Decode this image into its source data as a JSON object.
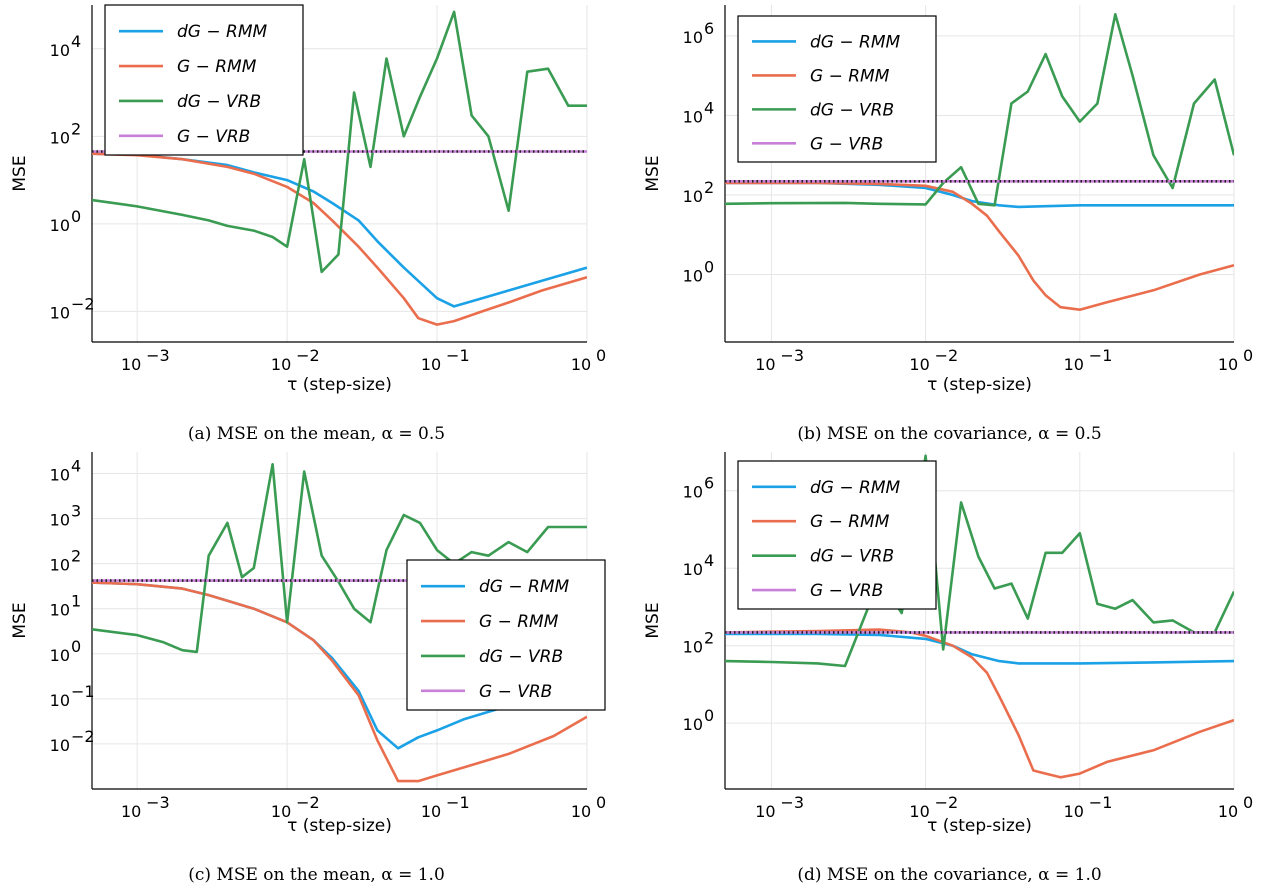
{
  "colors": {
    "dG-RMM": "#1ba1e6",
    "G-RMM": "#ea6e4d",
    "dG-VRB": "#3a9b52",
    "G-VRB": "#c77fd8",
    "grid": "#e6e6e6",
    "axis": "#000000"
  },
  "chart_data": [
    {
      "type": "line",
      "caption": "(a) MSE on the mean, α = 0.5",
      "xlabel": "τ (step-size)",
      "ylabel": "MSE",
      "xscale": "log",
      "yscale": "log",
      "xlim": [
        0.0005,
        1.0
      ],
      "ylim": [
        0.002,
        100000
      ],
      "xticks": [
        0.001,
        0.01,
        0.1,
        1
      ],
      "xtick_labels": [
        [
          "10",
          "−3"
        ],
        [
          "10",
          "−2"
        ],
        [
          "10",
          "−1"
        ],
        [
          "10",
          "0"
        ]
      ],
      "yticks": [
        0.01,
        1,
        100,
        10000
      ],
      "ytick_labels": [
        [
          "10",
          "−2"
        ],
        [
          "10",
          "0"
        ],
        [
          "10",
          "2"
        ],
        [
          "10",
          "4"
        ]
      ],
      "legend_position": "top-left",
      "grid": true,
      "series": [
        {
          "name": "dG − RMM",
          "key": "dG-RMM",
          "x": [
            0.0005,
            0.001,
            0.002,
            0.004,
            0.006,
            0.01,
            0.015,
            0.02,
            0.03,
            0.04,
            0.06,
            0.1,
            0.13,
            0.2,
            0.3,
            0.5,
            1.0
          ],
          "y": [
            40,
            38,
            30,
            22,
            15,
            10,
            5.5,
            3,
            1.2,
            0.4,
            0.1,
            0.02,
            0.013,
            0.02,
            0.03,
            0.05,
            0.1
          ]
        },
        {
          "name": "G − RMM",
          "key": "G-RMM",
          "x": [
            0.0005,
            0.001,
            0.002,
            0.004,
            0.006,
            0.01,
            0.015,
            0.02,
            0.03,
            0.04,
            0.06,
            0.075,
            0.1,
            0.13,
            0.2,
            0.3,
            0.5,
            1.0
          ],
          "y": [
            40,
            37,
            30,
            20,
            14,
            7,
            3,
            1.2,
            0.3,
            0.1,
            0.02,
            0.007,
            0.005,
            0.006,
            0.01,
            0.016,
            0.03,
            0.06
          ]
        },
        {
          "name": "dG − VRB",
          "key": "dG-VRB",
          "x": [
            0.0005,
            0.001,
            0.002,
            0.003,
            0.004,
            0.006,
            0.008,
            0.01,
            0.013,
            0.017,
            0.022,
            0.028,
            0.036,
            0.046,
            0.06,
            0.077,
            0.1,
            0.13,
            0.17,
            0.22,
            0.3,
            0.4,
            0.55,
            0.75,
            1.0
          ],
          "y": [
            3.5,
            2.5,
            1.6,
            1.2,
            0.9,
            0.7,
            0.5,
            0.3,
            30,
            0.08,
            0.2,
            1000,
            20,
            6000,
            100,
            800,
            6000,
            70000,
            300,
            100,
            2,
            3000,
            3500,
            500,
            500
          ]
        },
        {
          "name": "G − VRB",
          "key": "G-VRB",
          "x": [
            0.0005,
            1.0
          ],
          "y": [
            45,
            45
          ]
        }
      ]
    },
    {
      "type": "line",
      "caption": "(b) MSE on the covariance, α = 0.5",
      "xlabel": "τ (step-size)",
      "ylabel": "MSE",
      "xscale": "log",
      "yscale": "log",
      "xlim": [
        0.0005,
        1.0
      ],
      "ylim": [
        0.02,
        6000000
      ],
      "xticks": [
        0.001,
        0.01,
        0.1,
        1
      ],
      "xtick_labels": [
        [
          "10",
          "−3"
        ],
        [
          "10",
          "−2"
        ],
        [
          "10",
          "−1"
        ],
        [
          "10",
          "0"
        ]
      ],
      "yticks": [
        1,
        100,
        10000,
        1000000
      ],
      "ytick_labels": [
        [
          "10",
          "0"
        ],
        [
          "10",
          "2"
        ],
        [
          "10",
          "4"
        ],
        [
          "10",
          "6"
        ]
      ],
      "legend_position": "top-left",
      "grid": true,
      "series": [
        {
          "name": "dG − RMM",
          "key": "dG-RMM",
          "x": [
            0.0005,
            0.002,
            0.005,
            0.01,
            0.015,
            0.02,
            0.03,
            0.04,
            0.06,
            0.1,
            0.3,
            1.0
          ],
          "y": [
            200,
            200,
            180,
            150,
            100,
            70,
            55,
            50,
            52,
            55,
            55,
            55
          ]
        },
        {
          "name": "G − RMM",
          "key": "G-RMM",
          "x": [
            0.0005,
            0.002,
            0.005,
            0.01,
            0.015,
            0.02,
            0.025,
            0.03,
            0.04,
            0.05,
            0.06,
            0.075,
            0.1,
            0.15,
            0.3,
            0.6,
            1.0
          ],
          "y": [
            200,
            200,
            190,
            170,
            120,
            60,
            30,
            12,
            3,
            0.7,
            0.3,
            0.15,
            0.13,
            0.2,
            0.4,
            1,
            1.7
          ]
        },
        {
          "name": "dG − VRB",
          "key": "dG-VRB",
          "x": [
            0.0005,
            0.001,
            0.003,
            0.005,
            0.01,
            0.013,
            0.017,
            0.022,
            0.028,
            0.036,
            0.046,
            0.06,
            0.077,
            0.1,
            0.13,
            0.17,
            0.22,
            0.3,
            0.4,
            0.55,
            0.75,
            1.0
          ],
          "y": [
            60,
            62,
            63,
            60,
            58,
            200,
            500,
            60,
            55,
            20000,
            40000,
            350000,
            30000,
            7000,
            20000,
            3500000,
            100000,
            1000,
            150,
            20000,
            80000,
            1000
          ]
        },
        {
          "name": "G − VRB",
          "key": "G-VRB",
          "x": [
            0.0005,
            1.0
          ],
          "y": [
            220,
            220
          ]
        }
      ]
    },
    {
      "type": "line",
      "caption": "(c) MSE on the mean, α = 1.0",
      "xlabel": "τ (step-size)",
      "ylabel": "MSE",
      "xscale": "log",
      "yscale": "log",
      "xlim": [
        0.0005,
        1.0
      ],
      "ylim": [
        0.001,
        30000
      ],
      "xticks": [
        0.001,
        0.01,
        0.1,
        1
      ],
      "xtick_labels": [
        [
          "10",
          "−3"
        ],
        [
          "10",
          "−2"
        ],
        [
          "10",
          "−1"
        ],
        [
          "10",
          "0"
        ]
      ],
      "yticks": [
        0.01,
        0.1,
        1,
        10,
        100,
        1000,
        10000
      ],
      "ytick_labels": [
        [
          "10",
          "−2"
        ],
        [
          "10",
          "−1"
        ],
        [
          "10",
          "0"
        ],
        [
          "10",
          "1"
        ],
        [
          "10",
          "2"
        ],
        [
          "10",
          "3"
        ],
        [
          "10",
          "4"
        ]
      ],
      "legend_position": "center-right",
      "grid": true,
      "series": [
        {
          "name": "dG − RMM",
          "key": "dG-RMM",
          "x": [
            0.0005,
            0.001,
            0.002,
            0.003,
            0.004,
            0.006,
            0.01,
            0.015,
            0.02,
            0.03,
            0.04,
            0.055,
            0.075,
            0.1,
            0.15,
            0.3,
            0.6,
            1.0
          ],
          "y": [
            38,
            35,
            28,
            20,
            15,
            10,
            5,
            2,
            0.8,
            0.15,
            0.02,
            0.008,
            0.014,
            0.02,
            0.035,
            0.07,
            0.07,
            0.07
          ]
        },
        {
          "name": "G − RMM",
          "key": "G-RMM",
          "x": [
            0.0005,
            0.001,
            0.002,
            0.003,
            0.004,
            0.006,
            0.01,
            0.015,
            0.02,
            0.03,
            0.04,
            0.055,
            0.075,
            0.1,
            0.15,
            0.3,
            0.6,
            1.0
          ],
          "y": [
            38,
            35,
            28,
            20,
            15,
            10,
            5,
            2,
            0.7,
            0.12,
            0.012,
            0.0015,
            0.0015,
            0.002,
            0.003,
            0.006,
            0.015,
            0.04
          ]
        },
        {
          "name": "dG − VRB",
          "key": "dG-VRB",
          "x": [
            0.0005,
            0.001,
            0.0015,
            0.002,
            0.0025,
            0.003,
            0.004,
            0.005,
            0.006,
            0.008,
            0.01,
            0.013,
            0.017,
            0.022,
            0.028,
            0.036,
            0.046,
            0.06,
            0.077,
            0.1,
            0.13,
            0.17,
            0.22,
            0.3,
            0.4,
            0.55,
            0.75,
            1.0
          ],
          "y": [
            3.5,
            2.6,
            1.8,
            1.2,
            1.1,
            150,
            800,
            50,
            80,
            16000,
            5,
            11000,
            150,
            40,
            10,
            5,
            200,
            1200,
            800,
            200,
            100,
            180,
            150,
            300,
            180,
            650,
            650,
            650
          ]
        },
        {
          "name": "G − VRB",
          "key": "G-VRB",
          "x": [
            0.0005,
            1.0
          ],
          "y": [
            42,
            42
          ]
        }
      ]
    },
    {
      "type": "line",
      "caption": "(d) MSE on the covariance, α = 1.0",
      "xlabel": "τ (step-size)",
      "ylabel": "MSE",
      "xscale": "log",
      "yscale": "log",
      "xlim": [
        0.0005,
        1.0
      ],
      "ylim": [
        0.02,
        10000000
      ],
      "xticks": [
        0.001,
        0.01,
        0.1,
        1
      ],
      "xtick_labels": [
        [
          "10",
          "−3"
        ],
        [
          "10",
          "−2"
        ],
        [
          "10",
          "−1"
        ],
        [
          "10",
          "0"
        ]
      ],
      "yticks": [
        1,
        100,
        10000,
        1000000
      ],
      "ytick_labels": [
        [
          "10",
          "0"
        ],
        [
          "10",
          "2"
        ],
        [
          "10",
          "4"
        ],
        [
          "10",
          "6"
        ]
      ],
      "legend_position": "top-left",
      "grid": true,
      "series": [
        {
          "name": "dG − RMM",
          "key": "dG-RMM",
          "x": [
            0.0005,
            0.002,
            0.005,
            0.01,
            0.015,
            0.02,
            0.03,
            0.04,
            0.06,
            0.1,
            0.3,
            1.0
          ],
          "y": [
            200,
            200,
            190,
            150,
            100,
            60,
            40,
            35,
            35,
            35,
            37,
            40
          ]
        },
        {
          "name": "G − RMM",
          "key": "G-RMM",
          "x": [
            0.0005,
            0.002,
            0.005,
            0.008,
            0.01,
            0.015,
            0.02,
            0.025,
            0.03,
            0.04,
            0.05,
            0.06,
            0.075,
            0.1,
            0.15,
            0.3,
            0.6,
            1.0
          ],
          "y": [
            220,
            240,
            260,
            220,
            180,
            100,
            50,
            20,
            5,
            0.5,
            0.06,
            0.05,
            0.04,
            0.05,
            0.1,
            0.2,
            0.6,
            1.2
          ]
        },
        {
          "name": "dG − VRB",
          "key": "dG-VRB",
          "x": [
            0.0005,
            0.001,
            0.002,
            0.003,
            0.005,
            0.007,
            0.01,
            0.013,
            0.017,
            0.022,
            0.028,
            0.036,
            0.046,
            0.06,
            0.077,
            0.1,
            0.13,
            0.17,
            0.22,
            0.3,
            0.4,
            0.55,
            0.75,
            1.0
          ],
          "y": [
            40,
            38,
            35,
            30,
            5000,
            700,
            8000000,
            80,
            500000,
            20000,
            3000,
            4000,
            500,
            25000,
            25000,
            80000,
            1200,
            900,
            1500,
            400,
            450,
            220,
            220,
            2500
          ]
        },
        {
          "name": "G − VRB",
          "key": "G-VRB",
          "x": [
            0.0005,
            1.0
          ],
          "y": [
            220,
            220
          ]
        }
      ]
    }
  ]
}
